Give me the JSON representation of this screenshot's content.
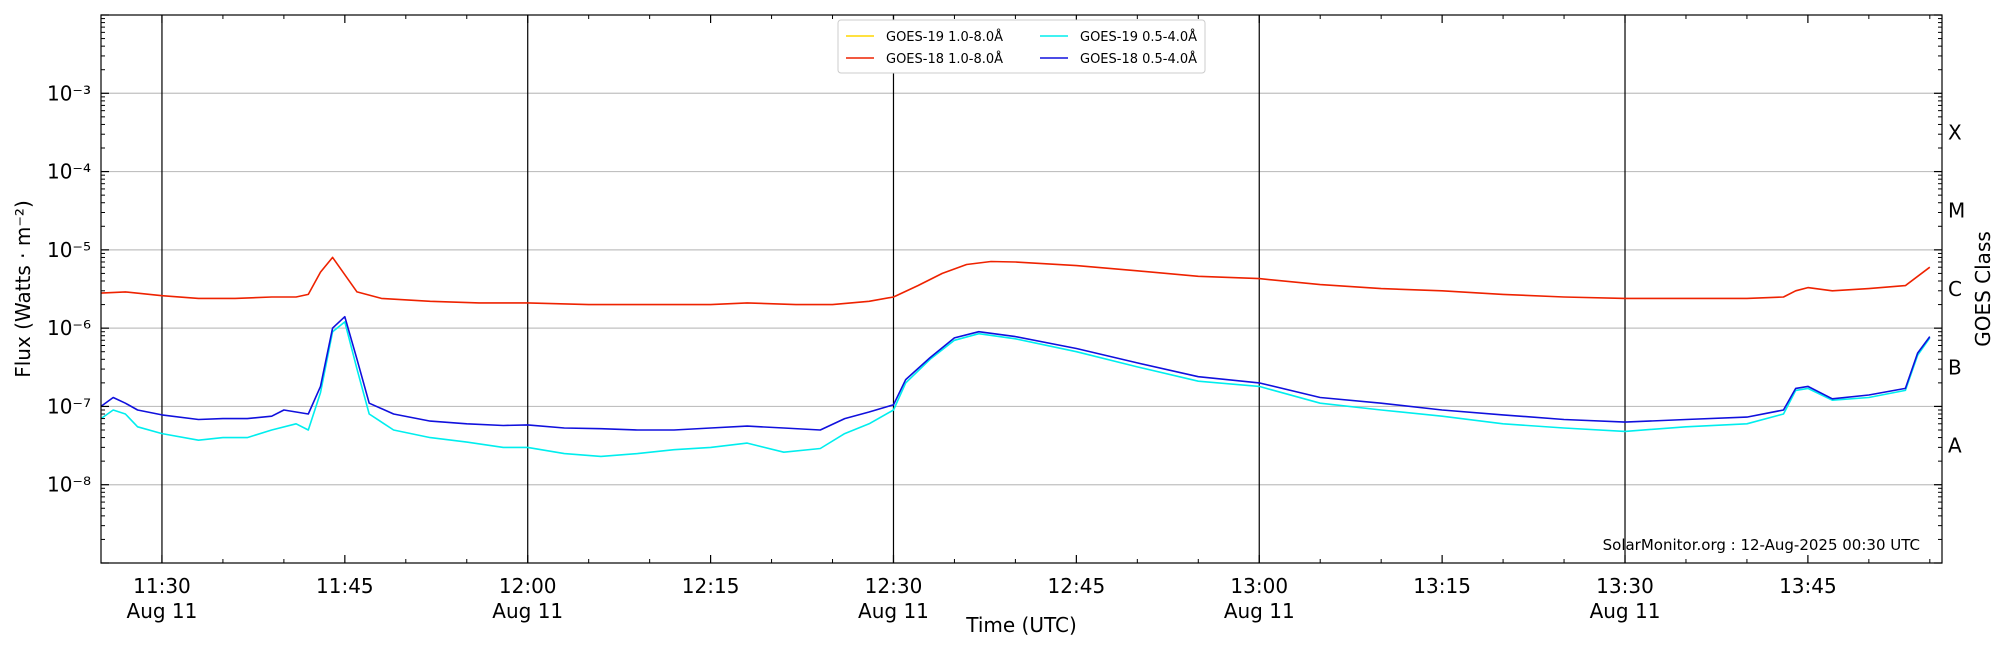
{
  "chart_data": {
    "type": "line",
    "xlabel": "Time (UTC)",
    "ylabel": "Flux (Watts · m⁻²)",
    "ylabel_right": "GOES Class",
    "y_scale": "log",
    "ylim": [
      1e-09,
      0.01
    ],
    "xlim": [
      "2025-08-11 11:25",
      "2025-08-11 13:56"
    ],
    "y_ticks": [
      {
        "value": 1e-08,
        "label": "10⁻⁸"
      },
      {
        "value": 1e-07,
        "label": "10⁻⁷"
      },
      {
        "value": 1e-06,
        "label": "10⁻⁶"
      },
      {
        "value": 1e-05,
        "label": "10⁻⁵"
      },
      {
        "value": 0.0001,
        "label": "10⁻⁴"
      },
      {
        "value": 0.001,
        "label": "10⁻³"
      }
    ],
    "x_ticks": [
      {
        "time": "11:30",
        "label": "11:30",
        "sublabel": "Aug 11"
      },
      {
        "time": "11:45",
        "label": "11:45",
        "sublabel": ""
      },
      {
        "time": "12:00",
        "label": "12:00",
        "sublabel": "Aug 11"
      },
      {
        "time": "12:15",
        "label": "12:15",
        "sublabel": ""
      },
      {
        "time": "12:30",
        "label": "12:30",
        "sublabel": "Aug 11"
      },
      {
        "time": "12:45",
        "label": "12:45",
        "sublabel": ""
      },
      {
        "time": "13:00",
        "label": "13:00",
        "sublabel": "Aug 11"
      },
      {
        "time": "13:15",
        "label": "13:15",
        "sublabel": ""
      },
      {
        "time": "13:30",
        "label": "13:30",
        "sublabel": "Aug 11"
      },
      {
        "time": "13:45",
        "label": "13:45",
        "sublabel": ""
      }
    ],
    "vertical_lines": [
      "11:30",
      "12:00",
      "12:30",
      "13:00",
      "13:30"
    ],
    "goes_classes": [
      {
        "label": "A",
        "value": 3.16e-08
      },
      {
        "label": "B",
        "value": 3.16e-07
      },
      {
        "label": "C",
        "value": 3.16e-06
      },
      {
        "label": "M",
        "value": 3.16e-05
      },
      {
        "label": "X",
        "value": 0.000316
      }
    ],
    "grid": "horizontal",
    "legend_position": "top-center",
    "credit": "SolarMonitor.org : 12-Aug-2025 00:30 UTC",
    "series": [
      {
        "name": "GOES-19 1.0-8.0Å",
        "color": "#ffd700",
        "points": []
      },
      {
        "name": "GOES-18 1.0-8.0Å",
        "color": "#ee2200",
        "points": [
          [
            "11:25",
            2.8e-06
          ],
          [
            "11:27",
            2.9e-06
          ],
          [
            "11:30",
            2.6e-06
          ],
          [
            "11:33",
            2.4e-06
          ],
          [
            "11:36",
            2.4e-06
          ],
          [
            "11:39",
            2.5e-06
          ],
          [
            "11:41",
            2.5e-06
          ],
          [
            "11:42",
            2.7e-06
          ],
          [
            "11:43",
            5.2e-06
          ],
          [
            "11:44",
            8e-06
          ],
          [
            "11:46",
            2.9e-06
          ],
          [
            "11:48",
            2.4e-06
          ],
          [
            "11:52",
            2.2e-06
          ],
          [
            "11:56",
            2.1e-06
          ],
          [
            "12:00",
            2.1e-06
          ],
          [
            "12:05",
            2e-06
          ],
          [
            "12:10",
            2e-06
          ],
          [
            "12:15",
            2e-06
          ],
          [
            "12:18",
            2.1e-06
          ],
          [
            "12:22",
            2e-06
          ],
          [
            "12:25",
            2e-06
          ],
          [
            "12:28",
            2.2e-06
          ],
          [
            "12:30",
            2.5e-06
          ],
          [
            "12:32",
            3.5e-06
          ],
          [
            "12:34",
            5e-06
          ],
          [
            "12:36",
            6.5e-06
          ],
          [
            "12:38",
            7.1e-06
          ],
          [
            "12:40",
            7e-06
          ],
          [
            "12:45",
            6.3e-06
          ],
          [
            "12:50",
            5.4e-06
          ],
          [
            "12:55",
            4.6e-06
          ],
          [
            "13:00",
            4.3e-06
          ],
          [
            "13:05",
            3.6e-06
          ],
          [
            "13:10",
            3.2e-06
          ],
          [
            "13:15",
            3e-06
          ],
          [
            "13:20",
            2.7e-06
          ],
          [
            "13:25",
            2.5e-06
          ],
          [
            "13:30",
            2.4e-06
          ],
          [
            "13:35",
            2.4e-06
          ],
          [
            "13:40",
            2.4e-06
          ],
          [
            "13:43",
            2.5e-06
          ],
          [
            "13:44",
            3e-06
          ],
          [
            "13:45",
            3.3e-06
          ],
          [
            "13:47",
            3e-06
          ],
          [
            "13:50",
            3.2e-06
          ],
          [
            "13:53",
            3.5e-06
          ],
          [
            "13:55",
            6e-06
          ]
        ]
      },
      {
        "name": "GOES-19 0.5-4.0Å",
        "color": "#00eeee",
        "points": [
          [
            "11:25",
            7e-08
          ],
          [
            "11:26",
            9e-08
          ],
          [
            "11:27",
            8e-08
          ],
          [
            "11:28",
            5.5e-08
          ],
          [
            "11:30",
            4.5e-08
          ],
          [
            "11:33",
            3.7e-08
          ],
          [
            "11:35",
            4e-08
          ],
          [
            "11:37",
            4e-08
          ],
          [
            "11:39",
            5e-08
          ],
          [
            "11:41",
            6e-08
          ],
          [
            "11:42",
            5e-08
          ],
          [
            "11:43",
            1.5e-07
          ],
          [
            "11:44",
            9e-07
          ],
          [
            "11:45",
            1.2e-06
          ],
          [
            "11:46",
            3e-07
          ],
          [
            "11:47",
            8e-08
          ],
          [
            "11:49",
            5e-08
          ],
          [
            "11:52",
            4e-08
          ],
          [
            "11:55",
            3.5e-08
          ],
          [
            "11:58",
            3e-08
          ],
          [
            "12:00",
            3e-08
          ],
          [
            "12:03",
            2.5e-08
          ],
          [
            "12:06",
            2.3e-08
          ],
          [
            "12:09",
            2.5e-08
          ],
          [
            "12:12",
            2.8e-08
          ],
          [
            "12:15",
            3e-08
          ],
          [
            "12:18",
            3.4e-08
          ],
          [
            "12:21",
            2.6e-08
          ],
          [
            "12:24",
            2.9e-08
          ],
          [
            "12:26",
            4.5e-08
          ],
          [
            "12:28",
            6e-08
          ],
          [
            "12:30",
            9e-08
          ],
          [
            "12:31",
            2e-07
          ],
          [
            "12:33",
            4e-07
          ],
          [
            "12:35",
            7e-07
          ],
          [
            "12:37",
            8.5e-07
          ],
          [
            "12:40",
            7.3e-07
          ],
          [
            "12:45",
            5e-07
          ],
          [
            "12:50",
            3.2e-07
          ],
          [
            "12:55",
            2.1e-07
          ],
          [
            "13:00",
            1.8e-07
          ],
          [
            "13:05",
            1.1e-07
          ],
          [
            "13:10",
            9e-08
          ],
          [
            "13:15",
            7.5e-08
          ],
          [
            "13:20",
            6e-08
          ],
          [
            "13:25",
            5.3e-08
          ],
          [
            "13:30",
            4.8e-08
          ],
          [
            "13:35",
            5.5e-08
          ],
          [
            "13:40",
            6e-08
          ],
          [
            "13:43",
            8e-08
          ],
          [
            "13:44",
            1.6e-07
          ],
          [
            "13:45",
            1.7e-07
          ],
          [
            "13:47",
            1.2e-07
          ],
          [
            "13:50",
            1.3e-07
          ],
          [
            "13:53",
            1.6e-07
          ],
          [
            "13:54",
            4.5e-07
          ],
          [
            "13:55",
            7.5e-07
          ]
        ]
      },
      {
        "name": "GOES-18 0.5-4.0Å",
        "color": "#1010dd",
        "points": [
          [
            "11:25",
            1e-07
          ],
          [
            "11:26",
            1.3e-07
          ],
          [
            "11:27",
            1.1e-07
          ],
          [
            "11:28",
            9e-08
          ],
          [
            "11:30",
            7.8e-08
          ],
          [
            "11:33",
            6.8e-08
          ],
          [
            "11:35",
            7e-08
          ],
          [
            "11:37",
            7e-08
          ],
          [
            "11:39",
            7.5e-08
          ],
          [
            "11:40",
            9e-08
          ],
          [
            "11:42",
            8e-08
          ],
          [
            "11:43",
            1.8e-07
          ],
          [
            "11:44",
            1e-06
          ],
          [
            "11:45",
            1.4e-06
          ],
          [
            "11:46",
            4e-07
          ],
          [
            "11:47",
            1.1e-07
          ],
          [
            "11:49",
            8e-08
          ],
          [
            "11:52",
            6.5e-08
          ],
          [
            "11:55",
            6e-08
          ],
          [
            "11:58",
            5.7e-08
          ],
          [
            "12:00",
            5.8e-08
          ],
          [
            "12:03",
            5.3e-08
          ],
          [
            "12:06",
            5.2e-08
          ],
          [
            "12:09",
            5e-08
          ],
          [
            "12:12",
            5e-08
          ],
          [
            "12:15",
            5.3e-08
          ],
          [
            "12:18",
            5.6e-08
          ],
          [
            "12:21",
            5.3e-08
          ],
          [
            "12:24",
            5e-08
          ],
          [
            "12:26",
            7e-08
          ],
          [
            "12:28",
            8.5e-08
          ],
          [
            "12:30",
            1.05e-07
          ],
          [
            "12:31",
            2.2e-07
          ],
          [
            "12:33",
            4.2e-07
          ],
          [
            "12:35",
            7.5e-07
          ],
          [
            "12:37",
            9e-07
          ],
          [
            "12:40",
            7.8e-07
          ],
          [
            "12:45",
            5.5e-07
          ],
          [
            "12:50",
            3.6e-07
          ],
          [
            "12:55",
            2.4e-07
          ],
          [
            "13:00",
            2e-07
          ],
          [
            "13:05",
            1.3e-07
          ],
          [
            "13:10",
            1.1e-07
          ],
          [
            "13:15",
            9e-08
          ],
          [
            "13:20",
            7.8e-08
          ],
          [
            "13:25",
            6.8e-08
          ],
          [
            "13:30",
            6.3e-08
          ],
          [
            "13:35",
            6.8e-08
          ],
          [
            "13:40",
            7.3e-08
          ],
          [
            "13:43",
            9e-08
          ],
          [
            "13:44",
            1.7e-07
          ],
          [
            "13:45",
            1.8e-07
          ],
          [
            "13:47",
            1.25e-07
          ],
          [
            "13:50",
            1.4e-07
          ],
          [
            "13:53",
            1.7e-07
          ],
          [
            "13:54",
            4.8e-07
          ],
          [
            "13:55",
            7.8e-07
          ]
        ]
      }
    ]
  }
}
